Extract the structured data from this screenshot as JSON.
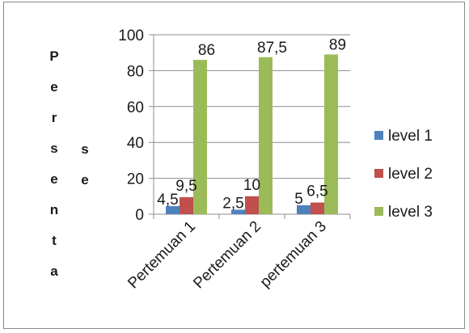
{
  "chart_data": {
    "type": "bar",
    "categories": [
      "Pertemuan 1",
      "Pertemuan 2",
      "pertemuan 3"
    ],
    "series": [
      {
        "name": "level 1",
        "values": [
          4.5,
          2.5,
          5
        ],
        "labels": [
          "4,5",
          "2,5",
          "5"
        ],
        "color": "#4f81bd"
      },
      {
        "name": "level 2",
        "values": [
          9.5,
          10,
          6.5
        ],
        "labels": [
          "9,5",
          "10",
          "6,5"
        ],
        "color": "#c0504d"
      },
      {
        "name": "level 3",
        "values": [
          86,
          87.5,
          89
        ],
        "labels": [
          "86",
          "87,5",
          "89"
        ],
        "color": "#9bbb59"
      }
    ],
    "ylabel_columns": [
      "Persenta",
      "se"
    ],
    "ylim": [
      0,
      100
    ],
    "yticks": [
      0,
      20,
      40,
      60,
      80,
      100
    ],
    "grid": true,
    "legend": "right"
  }
}
